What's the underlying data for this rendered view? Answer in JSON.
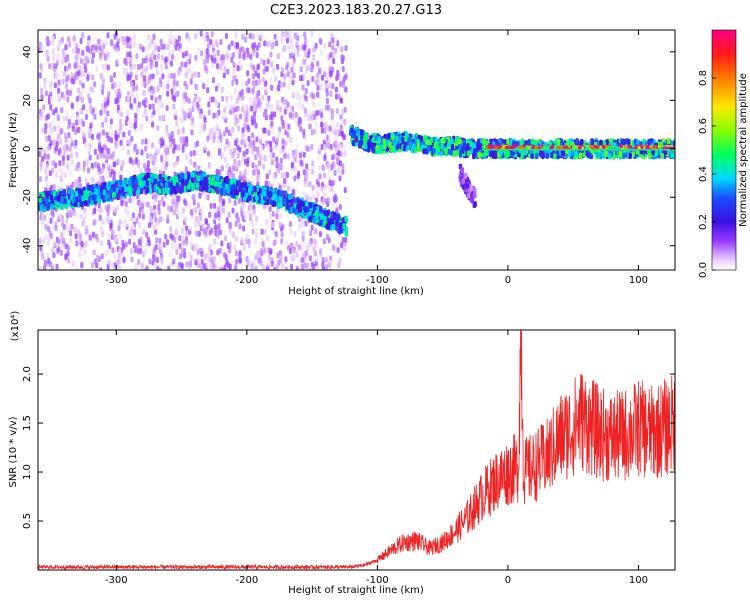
{
  "title": "C2E3.2023.183.20.27.G13",
  "chart_data": [
    {
      "type": "heatmap",
      "xlabel": "Height of straight line (km)",
      "ylabel": "Frequency (Hz)",
      "xlim": [
        -360,
        128
      ],
      "ylim": [
        -50,
        49
      ],
      "xticks": [
        -300,
        -200,
        -100,
        0,
        100
      ],
      "xtick_labels": [
        "-300",
        "-200",
        "-100",
        "0",
        "100"
      ],
      "yticks": [
        -40,
        -20,
        0,
        20,
        40
      ],
      "ytick_labels": [
        "-40",
        "-20",
        "0",
        "20",
        "40"
      ],
      "colorbar": {
        "label": "Normalized spectral amplitude",
        "range": [
          0.0,
          1.0
        ],
        "ticks": [
          0.0,
          0.2,
          0.4,
          0.6,
          0.8
        ],
        "tick_labels": [
          "0.0",
          "0.2",
          "0.4",
          "0.6",
          "0.8"
        ]
      },
      "features": [
        {
          "kind": "noise",
          "x_range": [
            -360,
            -125
          ],
          "f_range": [
            -50,
            49
          ],
          "amplitude": 0.05
        },
        {
          "kind": "trace",
          "x": [
            -360,
            -330,
            -300,
            -280,
            -260,
            -240,
            -220,
            -200,
            -180,
            -160,
            -140,
            -125
          ],
          "f": [
            -22,
            -20,
            -17,
            -14,
            -15,
            -13,
            -15,
            -18,
            -20,
            -24,
            -29,
            -32
          ],
          "amplitude": 0.3
        },
        {
          "kind": "trace",
          "x": [
            -122,
            -110,
            -100,
            -80,
            -60,
            -40,
            -30,
            -20,
            0,
            50,
            100,
            128
          ],
          "f": [
            6,
            3,
            2,
            3,
            1,
            1,
            0,
            0,
            0,
            0,
            0,
            0
          ],
          "amplitude": 0.35
        },
        {
          "kind": "trace",
          "x": [
            -38,
            -34,
            -30,
            -26
          ],
          "f": [
            -10,
            -14,
            -18,
            -21
          ],
          "amplitude": 0.12
        },
        {
          "kind": "trace",
          "x": [
            -20,
            0,
            50,
            100,
            128
          ],
          "f": [
            0,
            0,
            0,
            0,
            0
          ],
          "amplitude": 0.85
        }
      ]
    },
    {
      "type": "line",
      "xlabel": "Height of straight line (km)",
      "ylabel": "SNR (10 * v/v)",
      "y_multiplier_label": "(x10⁴)",
      "xlim": [
        -360,
        128
      ],
      "ylim": [
        0,
        2.45
      ],
      "xticks": [
        -300,
        -200,
        -100,
        0,
        100
      ],
      "xtick_labels": [
        "-300",
        "-200",
        "-100",
        "0",
        "100"
      ],
      "yticks": [
        0.5,
        1.0,
        1.5,
        2.0
      ],
      "ytick_labels": [
        "0.5",
        "1.0",
        "1.5",
        "2.0"
      ],
      "color": "#ee2222",
      "series": [
        {
          "x": [
            -360,
            -340,
            -320,
            -300,
            -280,
            -260,
            -240,
            -220,
            -200,
            -180,
            -160,
            -140,
            -120,
            -110,
            -100,
            -90,
            -80,
            -70,
            -60,
            -50,
            -40,
            -30,
            -20,
            -10,
            0,
            8,
            10,
            12,
            20,
            30,
            40,
            50,
            55,
            60,
            70,
            80,
            90,
            100,
            110,
            120,
            128
          ],
          "y": [
            0.03,
            0.03,
            0.03,
            0.03,
            0.03,
            0.03,
            0.03,
            0.03,
            0.03,
            0.03,
            0.03,
            0.03,
            0.03,
            0.05,
            0.1,
            0.2,
            0.28,
            0.3,
            0.22,
            0.28,
            0.4,
            0.55,
            0.75,
            0.9,
            1.0,
            1.05,
            2.5,
            1.0,
            1.05,
            1.15,
            1.35,
            1.45,
            1.55,
            1.5,
            1.4,
            1.35,
            1.38,
            1.45,
            1.4,
            1.45,
            1.5
          ]
        }
      ]
    }
  ]
}
